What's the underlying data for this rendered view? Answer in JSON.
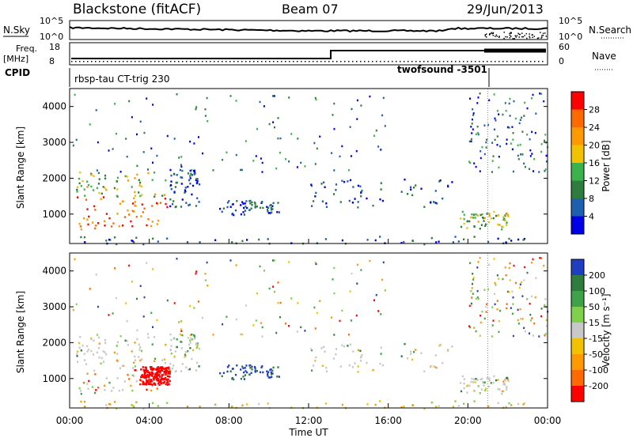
{
  "header": {
    "station": "Blackstone (fitACF)",
    "beam": "Beam 07",
    "date": "29/Jun/2013"
  },
  "top_panels": {
    "nsky_label": "N.Sky",
    "nsky_ticks": [
      "10^5",
      "10^0"
    ],
    "nsearch_label": "N.Search",
    "nsearch_ticks": [
      "10^5",
      "10^0"
    ],
    "freq_label_1": "Freq.",
    "freq_label_2": "[MHz]",
    "freq_ticks": [
      "18",
      "8"
    ],
    "nave_label": "Nave",
    "nave_ticks": [
      "60",
      "0"
    ],
    "cpid_label": "CPID",
    "cpid_1": "rbsp-tau CT-trig 230",
    "cpid_2": "twofsound -3501"
  },
  "chart_data": [
    {
      "type": "heatmap",
      "title": "",
      "xlabel": "",
      "ylabel": "Slant Range [km]",
      "colorbar_label": "Power [dB]",
      "colorbar_ticks": [
        28,
        24,
        20,
        16,
        12,
        8,
        4
      ],
      "colorbar_colors": [
        "#ff0000",
        "#ff6a00",
        "#ff9900",
        "#f2c200",
        "#3cb34a",
        "#2e7d3e",
        "#1f5fb0",
        "#0000e6"
      ],
      "yticks": [
        1000,
        2000,
        3000,
        4000
      ],
      "ylim": [
        180,
        4500
      ],
      "xlim": [
        0,
        24
      ],
      "xlabel_ticks": [
        "00:00",
        "04:00",
        "08:00",
        "12:00",
        "16:00",
        "20:00",
        "00:00"
      ],
      "scatter_regions": [
        {
          "t": [
            0.3,
            5.0
          ],
          "range": [
            600,
            1500
          ],
          "value": "high"
        },
        {
          "t": [
            0.3,
            5.0
          ],
          "range": [
            1500,
            2200
          ],
          "value": "mid"
        },
        {
          "t": [
            5.0,
            6.5
          ],
          "range": [
            1200,
            2300
          ],
          "value": "low"
        },
        {
          "t": [
            7.5,
            10.5
          ],
          "range": [
            1000,
            1400
          ],
          "value": "low"
        },
        {
          "t": [
            12.0,
            19.5
          ],
          "range": [
            1200,
            2000
          ],
          "value": "low"
        },
        {
          "t": [
            19.5,
            22.0
          ],
          "range": [
            600,
            1100
          ],
          "value": "mid"
        },
        {
          "t": [
            0.0,
            24.0
          ],
          "range": [
            180,
            400
          ],
          "value": "low"
        }
      ]
    },
    {
      "type": "heatmap",
      "title": "",
      "xlabel": "Time UT",
      "ylabel": "Slant Range [km]",
      "colorbar_label": "Velocity [m s⁻¹]",
      "colorbar_ticks": [
        200,
        100,
        50,
        15,
        -15,
        -50,
        -100,
        -200
      ],
      "colorbar_colors": [
        "#1f3fc0",
        "#2e7d3e",
        "#3fa14a",
        "#7fd04a",
        "#c8c8c8",
        "#f2c200",
        "#ff9900",
        "#ff6a00",
        "#ff0000"
      ],
      "yticks": [
        1000,
        2000,
        3000,
        4000
      ],
      "ylim": [
        180,
        4500
      ],
      "xlim": [
        0,
        24
      ],
      "xlabel_ticks": [
        "00:00",
        "04:00",
        "08:00",
        "12:00",
        "16:00",
        "20:00",
        "00:00"
      ]
    }
  ]
}
